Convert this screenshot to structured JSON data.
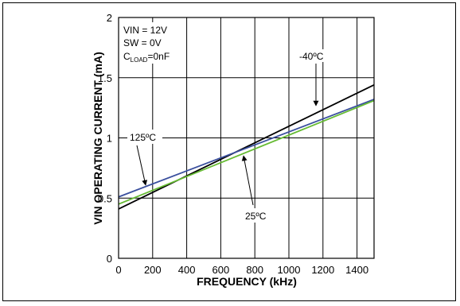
{
  "chart_data": {
    "type": "line",
    "xlabel": "FREQUENCY (kHz)",
    "ylabel": "VIN OPERATING CURRENT (mA)",
    "xlim": [
      0,
      1500
    ],
    "ylim": [
      0,
      2
    ],
    "xticks": [
      "0",
      "200",
      "400",
      "600",
      "800",
      "1000",
      "1200",
      "1400"
    ],
    "xtick_values": [
      0,
      200,
      400,
      600,
      800,
      1000,
      1200,
      1400
    ],
    "yticks": [
      "0",
      "0.5",
      "1",
      "1.5",
      "2"
    ],
    "ytick_values": [
      0,
      0.5,
      1,
      1.5,
      2
    ],
    "grid": true,
    "conditions": {
      "line1": "VIN = 12V",
      "line2": "SW = 0V",
      "line3_prefix": "C",
      "line3_sub": "LOAD",
      "line3_suffix": "=0nF"
    },
    "series": [
      {
        "name": "-40ºC",
        "color": "#000000",
        "x": [
          0,
          1500
        ],
        "y": [
          0.41,
          1.44
        ]
      },
      {
        "name": "125ºC",
        "color": "#3a4f9e",
        "x": [
          0,
          1500
        ],
        "y": [
          0.51,
          1.32
        ]
      },
      {
        "name": "25ºC",
        "color": "#66bb33",
        "x": [
          0,
          1500
        ],
        "y": [
          0.45,
          1.31
        ]
      }
    ],
    "annotations": [
      {
        "text": "-40ºC",
        "series": 0,
        "at_x": 1140
      },
      {
        "text": "125ºC",
        "series": 1,
        "at_x": 150
      },
      {
        "text": "25ºC",
        "series": 2,
        "at_x": 760
      }
    ]
  }
}
